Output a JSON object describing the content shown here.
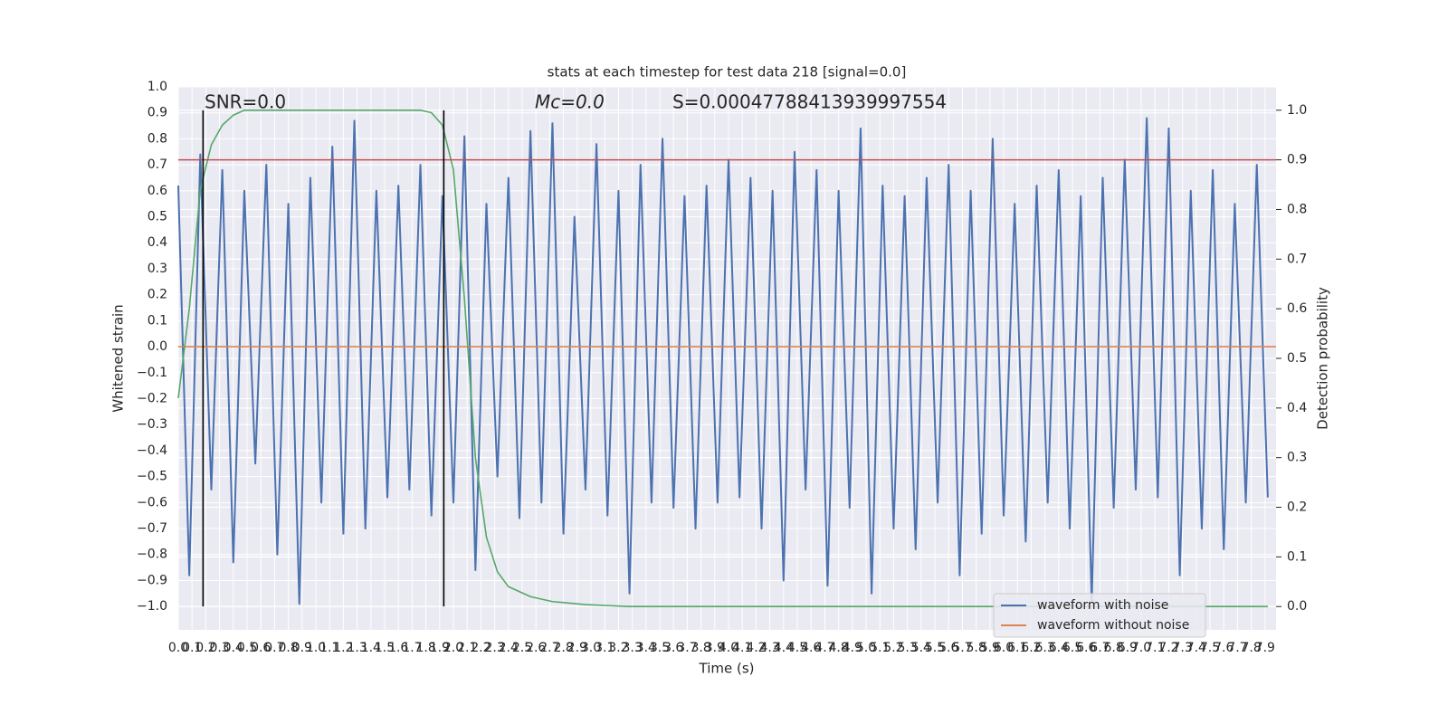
{
  "chart_data": {
    "type": "line",
    "title": "stats at each timestep for test data 218 [signal=0.0]",
    "xlabel": "Time (s)",
    "ylabel": "Whitened strain",
    "y2label": "Detection probability",
    "annotations": [
      "SNR=0.0",
      "Mc=0.0",
      "S=0.00047788413939997554"
    ],
    "xlim": [
      0,
      7.98
    ],
    "ylim": [
      -1.09,
      1.0
    ],
    "y2lim": [
      -0.047,
      1.047
    ],
    "grid": true,
    "legend": "lower right",
    "xticks": [
      {
        "value": 0,
        "label": "0.0"
      },
      0.1,
      0.2,
      0.3,
      0.4,
      0.5,
      0.6,
      0.7,
      0.8,
      0.9,
      {
        "value": 1,
        "label": "1.0"
      },
      1.1,
      1.2,
      1.3,
      1.4,
      1.5,
      1.6,
      1.7,
      1.8,
      1.9,
      {
        "value": 2,
        "label": "2.0"
      },
      2.1,
      2.2,
      2.3,
      2.4,
      2.5,
      2.6,
      2.7,
      2.8,
      2.9,
      {
        "value": 3,
        "label": "3.0"
      },
      3.1,
      3.2,
      3.3,
      3.4,
      3.5,
      3.6,
      3.7,
      3.8,
      3.9,
      {
        "value": 4,
        "label": "4.0"
      },
      4.1,
      4.2,
      4.3,
      4.4,
      4.5,
      4.6,
      4.7,
      4.8,
      4.9,
      {
        "value": 5,
        "label": "5.0"
      },
      5.1,
      5.2,
      5.3,
      5.4,
      5.5,
      5.6,
      5.7,
      5.8,
      5.9,
      {
        "value": 6,
        "label": "6.0"
      },
      6.1,
      6.2,
      6.3,
      6.4,
      6.5,
      6.6,
      6.7,
      6.8,
      6.9,
      {
        "value": 7,
        "label": "7.0"
      },
      7.1,
      7.2,
      7.3,
      7.4,
      7.5,
      7.6,
      7.7,
      7.8,
      7.9
    ],
    "yticks": [
      {
        "value": -1,
        "label": "−1.0"
      },
      {
        "value": -0.9,
        "label": "−0.9"
      },
      {
        "value": -0.8,
        "label": "−0.8"
      },
      {
        "value": -0.7,
        "label": "−0.7"
      },
      {
        "value": -0.6,
        "label": "−0.6"
      },
      {
        "value": -0.5,
        "label": "−0.5"
      },
      {
        "value": -0.4,
        "label": "−0.4"
      },
      {
        "value": -0.3,
        "label": "−0.3"
      },
      {
        "value": -0.2,
        "label": "−0.2"
      },
      {
        "value": -0.1,
        "label": "−0.1"
      },
      {
        "value": 0,
        "label": "0.0"
      },
      0.1,
      0.2,
      0.3,
      0.4,
      0.5,
      0.6,
      0.7,
      0.8,
      0.9,
      {
        "value": 1,
        "label": "1.0"
      }
    ],
    "y2ticks": [
      {
        "value": 0,
        "label": "0.0"
      },
      0.1,
      0.2,
      0.3,
      0.4,
      0.5,
      0.6,
      0.7,
      0.8,
      0.9,
      {
        "value": 1,
        "label": "1.0"
      }
    ],
    "x": [
      0,
      0.08,
      0.16,
      0.24,
      0.32,
      0.4,
      0.48,
      0.56,
      0.64,
      0.72,
      0.8,
      0.88,
      0.96,
      1.04,
      1.12,
      1.2,
      1.28,
      1.36,
      1.44,
      1.52,
      1.6,
      1.68,
      1.76,
      1.84,
      1.92,
      2,
      2.08,
      2.16,
      2.24,
      2.32,
      2.4,
      2.48,
      2.56,
      2.64,
      2.72,
      2.8,
      2.88,
      2.96,
      3.04,
      3.12,
      3.2,
      3.28,
      3.36,
      3.44,
      3.52,
      3.6,
      3.68,
      3.76,
      3.84,
      3.92,
      4,
      4.08,
      4.16,
      4.24,
      4.32,
      4.4,
      4.48,
      4.56,
      4.64,
      4.72,
      4.8,
      4.88,
      4.96,
      5.04,
      5.12,
      5.2,
      5.28,
      5.36,
      5.44,
      5.52,
      5.6,
      5.68,
      5.76,
      5.84,
      5.92,
      6,
      6.08,
      6.16,
      6.24,
      6.32,
      6.4,
      6.48,
      6.56,
      6.64,
      6.72,
      6.8,
      6.88,
      6.96,
      7.04,
      7.12,
      7.2,
      7.28,
      7.36,
      7.44,
      7.52,
      7.6,
      7.68,
      7.76,
      7.84,
      7.92
    ],
    "series": [
      {
        "name": "waveform with noise",
        "color": "#4c72b0",
        "values": [
          0.62,
          -0.88,
          0.74,
          -0.55,
          0.68,
          -0.83,
          0.6,
          -0.45,
          0.7,
          -0.8,
          0.55,
          -0.99,
          0.65,
          -0.6,
          0.77,
          -0.72,
          0.87,
          -0.7,
          0.6,
          -0.58,
          0.62,
          -0.55,
          0.7,
          -0.65,
          0.58,
          -0.6,
          0.81,
          -0.86,
          0.55,
          -0.5,
          0.65,
          -0.66,
          0.83,
          -0.6,
          0.86,
          -0.72,
          0.5,
          -0.55,
          0.78,
          -0.65,
          0.6,
          -0.95,
          0.7,
          -0.6,
          0.8,
          -0.62,
          0.58,
          -0.7,
          0.62,
          -0.6,
          0.72,
          -0.58,
          0.65,
          -0.7,
          0.6,
          -0.9,
          0.75,
          -0.55,
          0.68,
          -0.92,
          0.6,
          -0.62,
          0.84,
          -0.95,
          0.62,
          -0.7,
          0.58,
          -0.78,
          0.65,
          -0.6,
          0.7,
          -0.88,
          0.6,
          -0.72,
          0.8,
          -0.65,
          0.55,
          -0.75,
          0.62,
          -0.6,
          0.68,
          -0.7,
          0.58,
          -0.98,
          0.65,
          -0.62,
          0.72,
          -0.55,
          0.88,
          -0.58,
          0.84,
          -0.88,
          0.6,
          -0.7,
          0.68,
          -0.78,
          0.55,
          -0.6,
          0.7,
          -0.58
        ]
      },
      {
        "name": "waveform without noise",
        "color": "#dd8452",
        "x": [
          0,
          7.98
        ],
        "values": [
          0,
          0
        ]
      },
      {
        "color": "#55a868",
        "axis": "y2",
        "values": [
          0.42,
          0.6,
          0.84,
          0.93,
          0.97,
          0.99,
          1,
          1,
          1,
          1,
          1,
          1,
          1,
          1,
          1,
          1,
          1,
          1,
          1,
          1,
          1,
          1,
          1,
          0.995,
          0.97,
          0.88,
          0.62,
          0.3,
          0.14,
          0.07,
          0.04,
          0.03,
          0.02,
          0.015,
          0.01,
          0.008,
          0.006,
          0.004,
          0.003,
          0.002,
          0.001,
          0,
          0,
          0,
          0,
          0,
          0,
          0,
          0,
          0,
          0,
          0,
          0,
          0,
          0,
          0,
          0,
          0,
          0,
          0,
          0,
          0,
          0,
          0,
          0,
          0,
          0,
          0,
          0,
          0,
          0,
          0,
          0,
          0,
          0,
          0,
          0,
          0,
          0,
          0,
          0,
          0,
          0,
          0,
          0,
          0,
          0,
          0,
          0,
          0,
          0,
          0,
          0,
          0,
          0,
          0,
          0,
          0,
          0,
          0
        ]
      }
    ],
    "hline": {
      "y2": 0.9,
      "color": "#c44e52"
    },
    "vlines": {
      "x": [
        0.18,
        1.93
      ],
      "ymin": -1,
      "ymax": 0.91,
      "color": "#000000"
    }
  }
}
